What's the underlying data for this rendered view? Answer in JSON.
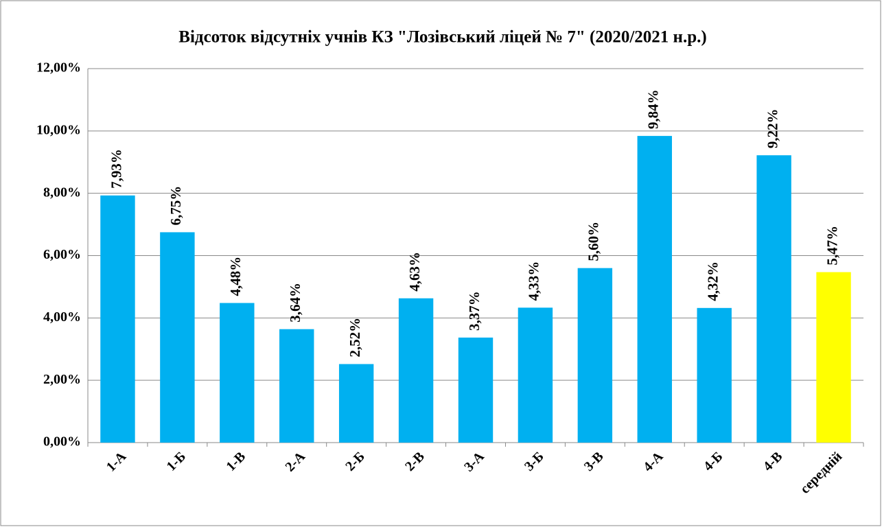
{
  "chart_data": {
    "type": "bar",
    "title": "Відсоток  відсутніх учнів КЗ \"Лозівський ліцей № 7\" (2020/2021 н.р.)",
    "categories": [
      "1-А",
      "1-Б",
      "1-В",
      "2-А",
      "2-Б",
      "2-В",
      "3-А",
      "3-Б",
      "3-В",
      "4-А",
      "4-Б",
      "4-В",
      "середній"
    ],
    "values": [
      7.93,
      6.75,
      4.48,
      3.64,
      2.52,
      4.63,
      3.37,
      4.33,
      5.6,
      9.84,
      4.32,
      9.22,
      5.47
    ],
    "value_labels": [
      "7,93%",
      "6,75%",
      "4,48%",
      "3,64%",
      "2,52%",
      "4,63%",
      "3,37%",
      "4,33%",
      "5,60%",
      "9,84%",
      "4,32%",
      "9,22%",
      "5,47%"
    ],
    "colors": [
      "#00b0f0",
      "#00b0f0",
      "#00b0f0",
      "#00b0f0",
      "#00b0f0",
      "#00b0f0",
      "#00b0f0",
      "#00b0f0",
      "#00b0f0",
      "#00b0f0",
      "#00b0f0",
      "#00b0f0",
      "#ffff00"
    ],
    "ylim": [
      0,
      12
    ],
    "yticks": [
      {
        "value": 0,
        "label": "0,00%"
      },
      {
        "value": 2,
        "label": "2,00%"
      },
      {
        "value": 4,
        "label": "4,00%"
      },
      {
        "value": 6,
        "label": "6,00%"
      },
      {
        "value": 8,
        "label": "8,00%"
      },
      {
        "value": 10,
        "label": "10,00%"
      },
      {
        "value": 12,
        "label": "12,00%"
      }
    ],
    "grid": true
  }
}
